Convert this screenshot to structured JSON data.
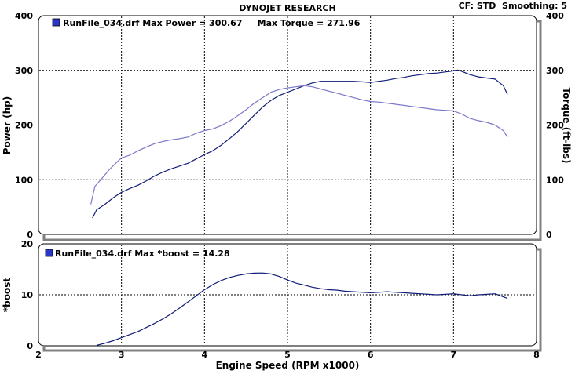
{
  "header": {
    "title": "DYNOJET RESEARCH",
    "info": "CF: STD  Smoothing: 5"
  },
  "colors": {
    "power": "#101c78",
    "torque": "#7b78c8",
    "boost": "#101c78",
    "legend_box": "#2a36c8",
    "grid": "#000000"
  },
  "chart_data": [
    {
      "type": "line",
      "title": "",
      "legend": "RunFile_034.drf Max Power = 300.67     Max Torque = 271.96",
      "xlabel": "Engine Speed (RPM x1000)",
      "ylabel": "Power (hp)",
      "y2label": "Torque (ft-lbs)",
      "xlim": [
        2,
        8
      ],
      "ylim": [
        0,
        400
      ],
      "y2lim": [
        0,
        400
      ],
      "xticks": [
        "2",
        "3",
        "4",
        "5",
        "6",
        "7",
        "8"
      ],
      "yticks": [
        "0",
        "100",
        "200",
        "300",
        "400"
      ],
      "y2ticks": [
        "0",
        "100",
        "200",
        "300",
        "400"
      ],
      "grid": true,
      "series": [
        {
          "key": "power",
          "x": [
            2.65,
            2.7,
            2.8,
            2.9,
            3.0,
            3.1,
            3.2,
            3.3,
            3.4,
            3.5,
            3.6,
            3.7,
            3.8,
            3.9,
            4.0,
            4.1,
            4.2,
            4.3,
            4.4,
            4.5,
            4.6,
            4.7,
            4.8,
            4.9,
            5.0,
            5.1,
            5.2,
            5.3,
            5.4,
            5.5,
            5.6,
            5.7,
            5.8,
            5.9,
            6.0,
            6.1,
            6.2,
            6.3,
            6.4,
            6.5,
            6.6,
            6.7,
            6.8,
            6.9,
            7.0,
            7.05,
            7.1,
            7.2,
            7.3,
            7.4,
            7.5,
            7.6,
            7.65
          ],
          "values": [
            30,
            45,
            55,
            67,
            77,
            84,
            90,
            98,
            107,
            114,
            120,
            125,
            130,
            138,
            146,
            153,
            163,
            175,
            188,
            203,
            218,
            233,
            245,
            254,
            260,
            266,
            272,
            277,
            280,
            280,
            280,
            280,
            280,
            279,
            278,
            280,
            282,
            285,
            287,
            290,
            292,
            294,
            295,
            297,
            299,
            300.67,
            298,
            292,
            288,
            286,
            284,
            272,
            256
          ]
        },
        {
          "key": "torque",
          "x": [
            2.63,
            2.68,
            2.75,
            2.85,
            2.95,
            3.0,
            3.1,
            3.2,
            3.3,
            3.4,
            3.5,
            3.6,
            3.7,
            3.8,
            3.9,
            4.0,
            4.1,
            4.2,
            4.3,
            4.4,
            4.5,
            4.6,
            4.7,
            4.8,
            4.9,
            5.0,
            5.1,
            5.2,
            5.3,
            5.4,
            5.5,
            5.6,
            5.7,
            5.8,
            5.9,
            6.0,
            6.1,
            6.2,
            6.3,
            6.4,
            6.5,
            6.6,
            6.7,
            6.8,
            6.9,
            7.0,
            7.1,
            7.2,
            7.3,
            7.4,
            7.5,
            7.6,
            7.65
          ],
          "values": [
            55,
            88,
            100,
            118,
            133,
            140,
            145,
            153,
            160,
            166,
            170,
            173,
            175,
            178,
            185,
            190,
            193,
            199,
            207,
            217,
            228,
            240,
            250,
            260,
            265,
            268,
            270,
            271.96,
            270,
            266,
            262,
            258,
            254,
            250,
            246,
            243,
            242,
            240,
            238,
            236,
            234,
            232,
            230,
            228,
            227,
            226,
            220,
            212,
            208,
            205,
            200,
            190,
            178
          ]
        }
      ]
    },
    {
      "type": "line",
      "title": "",
      "legend": "RunFile_034.drf Max *boost = 14.28",
      "xlabel": "Engine Speed (RPM x1000)",
      "ylabel": "*boost",
      "xlim": [
        2,
        8
      ],
      "ylim": [
        0,
        20
      ],
      "xticks": [
        "2",
        "3",
        "4",
        "5",
        "6",
        "7",
        "8"
      ],
      "yticks": [
        "0",
        "10",
        "20"
      ],
      "grid": true,
      "series": [
        {
          "key": "boost",
          "x": [
            2.7,
            2.8,
            2.9,
            3.0,
            3.1,
            3.2,
            3.3,
            3.4,
            3.5,
            3.6,
            3.7,
            3.8,
            3.9,
            4.0,
            4.1,
            4.2,
            4.3,
            4.4,
            4.5,
            4.6,
            4.7,
            4.8,
            4.9,
            5.0,
            5.1,
            5.2,
            5.3,
            5.4,
            5.5,
            5.6,
            5.7,
            5.8,
            5.9,
            6.0,
            6.1,
            6.2,
            6.3,
            6.4,
            6.5,
            6.6,
            6.7,
            6.8,
            6.9,
            7.0,
            7.1,
            7.2,
            7.3,
            7.4,
            7.5,
            7.6,
            7.65
          ],
          "values": [
            0.1,
            0.5,
            1.0,
            1.6,
            2.2,
            2.8,
            3.6,
            4.4,
            5.3,
            6.3,
            7.4,
            8.6,
            9.8,
            11.0,
            12.0,
            12.8,
            13.4,
            13.8,
            14.1,
            14.25,
            14.28,
            14.1,
            13.6,
            12.9,
            12.3,
            11.9,
            11.5,
            11.2,
            11.0,
            10.9,
            10.7,
            10.6,
            10.5,
            10.4,
            10.5,
            10.6,
            10.5,
            10.4,
            10.3,
            10.2,
            10.1,
            10.0,
            10.1,
            10.2,
            10.0,
            9.8,
            10.0,
            10.1,
            10.2,
            9.6,
            9.3
          ]
        }
      ]
    }
  ]
}
